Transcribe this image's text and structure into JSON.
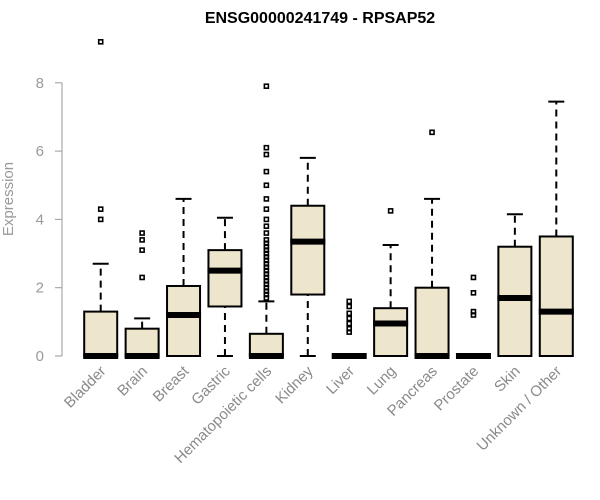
{
  "chart_data": {
    "type": "boxplot",
    "title": "ENSG00000241749 - RPSAP52",
    "xlabel": "",
    "ylabel": "Expression",
    "ylim": [
      0,
      9.2
    ],
    "yticks": [
      0,
      2,
      4,
      6,
      8
    ],
    "categories": [
      "Bladder",
      "Brain",
      "Breast",
      "Gastric",
      "Hematopoietic cells",
      "Kidney",
      "Liver",
      "Lung",
      "Pancreas",
      "Prostate",
      "Skin",
      "Unknown / Other"
    ],
    "boxes": [
      {
        "name": "Bladder",
        "min": 0,
        "q1": 0,
        "median": 0,
        "q3": 1.3,
        "max": 2.7,
        "outliers": [
          4.0,
          4.3,
          9.2
        ]
      },
      {
        "name": "Brain",
        "min": 0,
        "q1": 0,
        "median": 0,
        "q3": 0.8,
        "max": 1.1,
        "outliers": [
          2.3,
          3.1,
          3.4,
          3.6
        ]
      },
      {
        "name": "Breast",
        "min": 0,
        "q1": 0,
        "median": 1.2,
        "q3": 2.05,
        "max": 4.6,
        "outliers": []
      },
      {
        "name": "Gastric",
        "min": 0,
        "q1": 1.45,
        "median": 2.5,
        "q3": 3.1,
        "max": 4.05,
        "outliers": []
      },
      {
        "name": "Hematopoietic cells",
        "min": 0,
        "q1": 0,
        "median": 0,
        "q3": 0.65,
        "max": 1.6,
        "outliers": [
          1.7,
          1.8,
          1.9,
          2.0,
          2.1,
          2.2,
          2.3,
          2.4,
          2.5,
          2.6,
          2.7,
          2.8,
          2.9,
          3.0,
          3.1,
          3.2,
          3.3,
          3.4,
          3.6,
          3.8,
          4.0,
          4.3,
          4.6,
          5.0,
          5.4,
          5.9,
          6.1,
          7.9
        ]
      },
      {
        "name": "Kidney",
        "min": 0,
        "q1": 1.8,
        "median": 3.35,
        "q3": 4.4,
        "max": 5.8,
        "outliers": []
      },
      {
        "name": "Liver",
        "min": 0,
        "q1": 0,
        "median": 0,
        "q3": 0,
        "max": 0,
        "outliers": [
          0.7,
          0.8,
          0.95,
          1.1,
          1.25,
          1.45,
          1.6
        ]
      },
      {
        "name": "Lung",
        "min": 0,
        "q1": 0,
        "median": 0.95,
        "q3": 1.4,
        "max": 3.25,
        "outliers": [
          4.25
        ]
      },
      {
        "name": "Pancreas",
        "min": 0,
        "q1": 0,
        "median": 0,
        "q3": 2.0,
        "max": 4.6,
        "outliers": [
          6.55
        ]
      },
      {
        "name": "Prostate",
        "min": 0,
        "q1": 0,
        "median": 0,
        "q3": 0,
        "max": 0,
        "outliers": [
          1.2,
          1.3,
          1.85,
          2.3
        ]
      },
      {
        "name": "Skin",
        "min": 0,
        "q1": 0,
        "median": 1.7,
        "q3": 3.2,
        "max": 4.15,
        "outliers": []
      },
      {
        "name": "Unknown / Other",
        "min": 0,
        "q1": 0,
        "median": 1.3,
        "q3": 3.5,
        "max": 7.45,
        "outliers": []
      }
    ]
  }
}
